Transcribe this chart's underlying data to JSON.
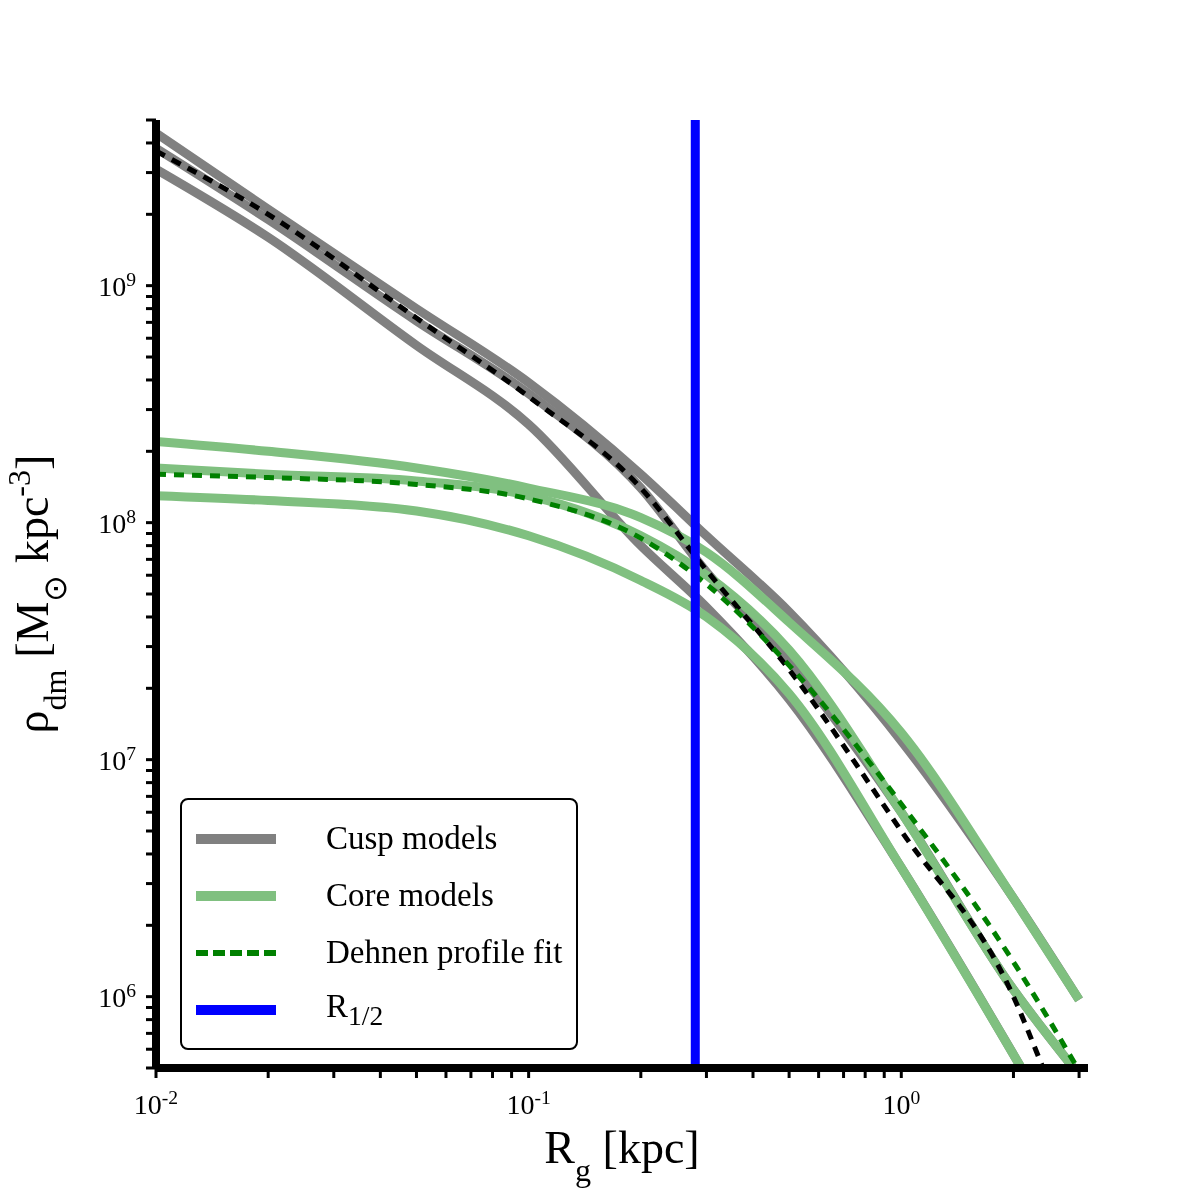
{
  "chart_data": {
    "type": "line",
    "xlabel": "R$_{g}$ [kpc]",
    "ylabel": "ρ$_{dm}$ [M$_{⊙}$ kpc$^{-3}$]",
    "log": "xy",
    "xlim": [
      0.01,
      3.17
    ],
    "ylim": [
      500000,
      5000000000
    ],
    "xticks": [
      {
        "value": 0.01,
        "label": "10$^{-2}$"
      },
      {
        "value": 0.02,
        "label": null
      },
      {
        "value": 0.03,
        "label": null
      },
      {
        "value": 0.04,
        "label": null
      },
      {
        "value": 0.05,
        "label": null
      },
      {
        "value": 0.06,
        "label": null
      },
      {
        "value": 0.07,
        "label": null
      },
      {
        "value": 0.08,
        "label": null
      },
      {
        "value": 0.09,
        "label": null
      },
      {
        "value": 0.1,
        "label": "10$^{-1}$"
      },
      {
        "value": 0.2,
        "label": null
      },
      {
        "value": 0.3,
        "label": null
      },
      {
        "value": 0.4,
        "label": null
      },
      {
        "value": 0.5,
        "label": null
      },
      {
        "value": 0.6,
        "label": null
      },
      {
        "value": 0.7,
        "label": null
      },
      {
        "value": 0.8,
        "label": null
      },
      {
        "value": 0.9,
        "label": null
      },
      {
        "value": 1,
        "label": "10$^{0}$"
      },
      {
        "value": 2,
        "label": null
      },
      {
        "value": 3,
        "label": null
      }
    ],
    "yticks": [
      {
        "value": 500000,
        "label": null
      },
      {
        "value": 600000,
        "label": null
      },
      {
        "value": 700000,
        "label": null
      },
      {
        "value": 800000,
        "label": null
      },
      {
        "value": 900000,
        "label": null
      },
      {
        "value": 1000000,
        "label": "10$^{6}$"
      },
      {
        "value": 2000000,
        "label": null
      },
      {
        "value": 3000000,
        "label": null
      },
      {
        "value": 4000000,
        "label": null
      },
      {
        "value": 5000000,
        "label": null
      },
      {
        "value": 6000000,
        "label": null
      },
      {
        "value": 7000000,
        "label": null
      },
      {
        "value": 8000000,
        "label": null
      },
      {
        "value": 9000000,
        "label": null
      },
      {
        "value": 10000000,
        "label": "10$^{7}$"
      },
      {
        "value": 20000000,
        "label": null
      },
      {
        "value": 30000000,
        "label": null
      },
      {
        "value": 40000000,
        "label": null
      },
      {
        "value": 50000000,
        "label": null
      },
      {
        "value": 60000000,
        "label": null
      },
      {
        "value": 70000000,
        "label": null
      },
      {
        "value": 80000000,
        "label": null
      },
      {
        "value": 90000000,
        "label": null
      },
      {
        "value": 100000000,
        "label": "10$^{8}$"
      },
      {
        "value": 200000000,
        "label": null
      },
      {
        "value": 300000000,
        "label": null
      },
      {
        "value": 400000000,
        "label": null
      },
      {
        "value": 500000000,
        "label": null
      },
      {
        "value": 600000000,
        "label": null
      },
      {
        "value": 700000000,
        "label": null
      },
      {
        "value": 800000000,
        "label": null
      },
      {
        "value": 900000000,
        "label": null
      },
      {
        "value": 1000000000,
        "label": "10$^{9}$"
      },
      {
        "value": 2000000000,
        "label": null
      },
      {
        "value": 3000000000,
        "label": null
      },
      {
        "value": 4000000000,
        "label": null
      },
      {
        "value": 5000000000,
        "label": null
      }
    ],
    "legend": "bottom left",
    "series": [
      {
        "name": "Cusp models",
        "color": "#808080",
        "x": [
          0.01,
          0.02,
          0.05,
          0.1,
          0.2,
          0.3,
          0.5,
          1,
          2,
          3
        ],
        "values": [
          4400000000,
          2100000000,
          800000000,
          390000000,
          160000000,
          88000000,
          42000000,
          12000000,
          2600000,
          970000
        ]
      },
      {
        "color": "#808080",
        "x": [
          0.01,
          0.02,
          0.05,
          0.1,
          0.2,
          0.3,
          0.5,
          1,
          2,
          2.9
        ],
        "values": [
          3800000000,
          1900000000,
          710000000,
          350000000,
          140000000,
          62000000,
          26000000,
          6000000,
          1070000,
          500000
        ]
      },
      {
        "color": "#808080",
        "x": [
          0.01,
          0.02,
          0.05,
          0.1,
          0.2,
          0.3,
          0.5,
          1,
          2.1
        ],
        "values": [
          3100000000,
          1600000000,
          560000000,
          260000000,
          80000000,
          44000000,
          18000000,
          3500000,
          500000
        ]
      },
      {
        "name": "Core models",
        "color": "#80c080",
        "x": [
          0.01,
          0.02,
          0.05,
          0.1,
          0.2,
          0.3,
          0.5,
          1,
          2,
          3
        ],
        "values": [
          220000000,
          200000000,
          170000000,
          140000000,
          105000000,
          75000000,
          38000000,
          13000000,
          2600000,
          970000
        ]
      },
      {
        "color": "#80c080",
        "x": [
          0.01,
          0.02,
          0.05,
          0.1,
          0.2,
          0.3,
          0.5,
          1,
          2,
          2.9
        ],
        "values": [
          170000000,
          160000000,
          150000000,
          130000000,
          88000000,
          60000000,
          29000000,
          6000000,
          1070000,
          500000
        ]
      },
      {
        "color": "#80c080",
        "x": [
          0.01,
          0.02,
          0.05,
          0.1,
          0.2,
          0.3,
          0.5,
          1,
          2.1
        ],
        "values": [
          130000000,
          124000000,
          112000000,
          88000000,
          57000000,
          40000000,
          19000000,
          3500000,
          500000
        ]
      },
      {
        "color": "#000000",
        "line_style": "dashed",
        "x": [
          0.01,
          0.02,
          0.05,
          0.1,
          0.2,
          0.3,
          0.5,
          1,
          2,
          2.4
        ],
        "values": [
          3700000000,
          2000000000,
          730000000,
          340000000,
          140000000,
          63000000,
          24000000,
          5000000,
          1000000,
          500000
        ]
      },
      {
        "name": "Dehnen profile fit",
        "color": "#008000",
        "line_style": "dashed",
        "x": [
          0.01,
          0.02,
          0.05,
          0.1,
          0.2,
          0.3,
          0.5,
          1,
          2,
          2.97
        ],
        "values": [
          160000000,
          155000000,
          145000000,
          126000000,
          86000000,
          55000000,
          25000000,
          6500000,
          1400000,
          500000
        ]
      },
      {
        "name": "R$_{1/2}$",
        "color": "#0000ff",
        "x": [
          0.28,
          0.28
        ],
        "values": [
          500000,
          5000000000
        ]
      }
    ]
  }
}
